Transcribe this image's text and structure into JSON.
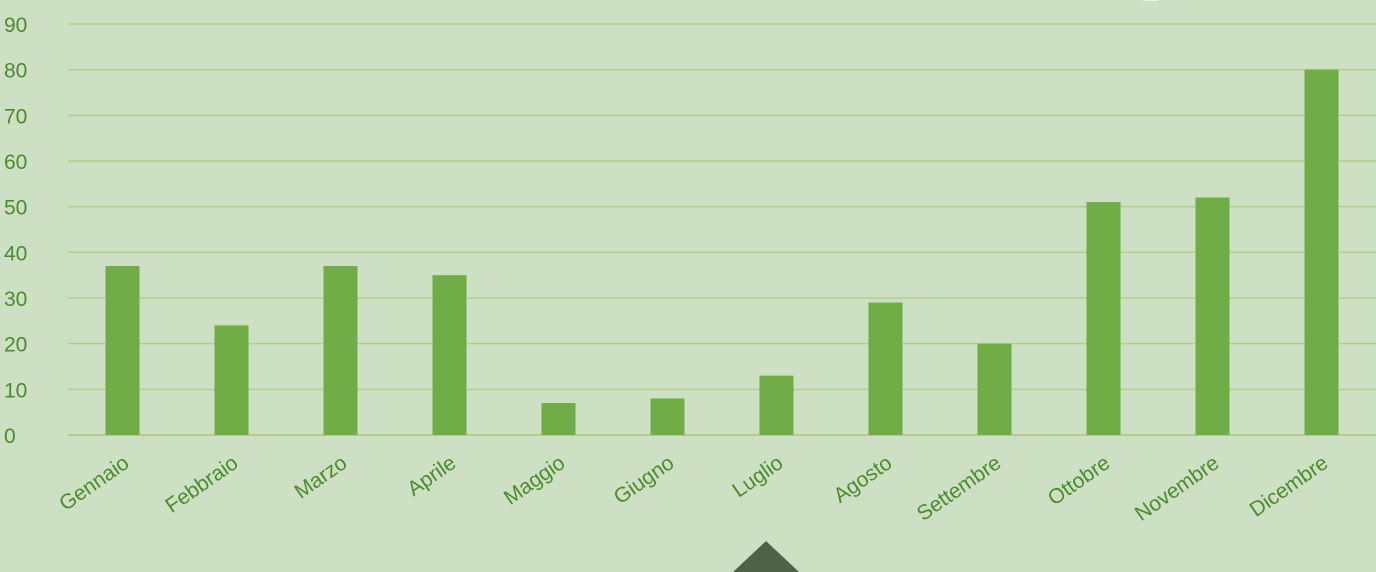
{
  "chart_data": {
    "type": "bar",
    "categories": [
      "Gennaio",
      "Febbraio",
      "Marzo",
      "Aprile",
      "Maggio",
      "Giugno",
      "Luglio",
      "Agosto",
      "Settembre",
      "Ottobre",
      "Novembre",
      "Dicembre"
    ],
    "values": [
      37,
      24,
      37,
      35,
      7,
      8,
      13,
      29,
      20,
      51,
      52,
      80
    ],
    "yticks": [
      0,
      10,
      20,
      30,
      40,
      50,
      60,
      70,
      80,
      90
    ],
    "ylim": [
      0,
      90
    ],
    "grid": true,
    "legend": "none"
  },
  "colors": {
    "background": "#cde0c4",
    "bar": "#70ad47",
    "gridline": "#b5cc8e",
    "axis_text": "#4e8a2e",
    "decor_dark": "#4f6148",
    "decor_light": "#ffffff"
  }
}
